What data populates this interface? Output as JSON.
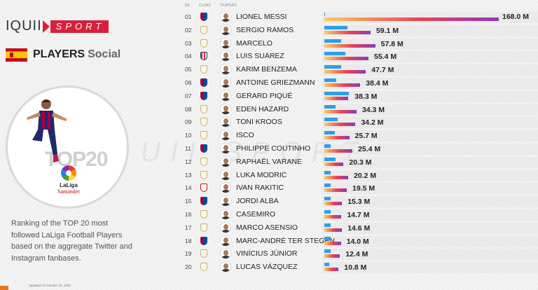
{
  "brand": {
    "left": "IQUII",
    "right": "SPORT"
  },
  "heading": {
    "main": "PLAYERS",
    "sub": "Social"
  },
  "badge": {
    "title": "TOP20",
    "league": "LaLiga",
    "sponsor": "Santander"
  },
  "description": "Ranking of the TOP 20 most followed LaLiga Football Players based on the aggregate Twitter and Instagram fanbases.",
  "footnote": "*Updated on October 20, 2020",
  "watermark": "IQUII SPORT",
  "colors": {
    "twitter": "#2aa0ea",
    "instagram_start": "#fccc63",
    "instagram_mid": "#e94057",
    "instagram_end": "#8a3ab9",
    "brand": "#d8203a"
  },
  "chart_data": {
    "type": "bar",
    "title": "PLAYERS Social",
    "columns": {
      "rank": "RK",
      "club": "CLUBS",
      "player": "PLAYERS"
    },
    "unit": "M",
    "xlim": [
      0,
      168
    ],
    "series_names": [
      "Twitter",
      "Instagram"
    ],
    "rows": [
      {
        "rank": "01",
        "club": "barcelona",
        "player": "LIONEL MESSI",
        "total": "168.0 M",
        "twitter": 0.5,
        "instagram": 168
      },
      {
        "rank": "02",
        "club": "real-madrid",
        "player": "SERGIO RAMOS",
        "total": "59.1 M",
        "twitter": 22,
        "instagram": 44.5
      },
      {
        "rank": "03",
        "club": "real-madrid",
        "player": "MARCELO",
        "total": "57.8 M",
        "twitter": 16,
        "instagram": 49
      },
      {
        "rank": "04",
        "club": "atletico",
        "player": "LUIS SUÁREZ",
        "total": "55.4 M",
        "twitter": 20,
        "instagram": 42.5
      },
      {
        "rank": "05",
        "club": "real-madrid",
        "player": "KARIM BENZEMA",
        "total": "47.7 M",
        "twitter": 16,
        "instagram": 40
      },
      {
        "rank": "06",
        "club": "barcelona",
        "player": "ANTOINE GRIEZMANN",
        "total": "38.4 M",
        "twitter": 11.7,
        "instagram": 34.6
      },
      {
        "rank": "07",
        "club": "barcelona",
        "player": "GERARD PIQUÉ",
        "total": "38.3 M",
        "twitter": 23.8,
        "instagram": 22.7
      },
      {
        "rank": "08",
        "club": "real-madrid",
        "player": "EDEN HAZARD",
        "total": "34.3 M",
        "twitter": 11,
        "instagram": 31
      },
      {
        "rank": "09",
        "club": "real-madrid",
        "player": "TONI KROOS",
        "total": "34.2 M",
        "twitter": 12.6,
        "instagram": 30
      },
      {
        "rank": "10",
        "club": "real-madrid",
        "player": "ISCO",
        "total": "25.7 M",
        "twitter": 10,
        "instagram": 24
      },
      {
        "rank": "11",
        "club": "barcelona",
        "player": "PHILIPPE COUTINHO",
        "total": "25.4 M",
        "twitter": 6,
        "instagram": 27
      },
      {
        "rank": "12",
        "club": "real-madrid",
        "player": "RAPHAËL VARANE",
        "total": "20.3 M",
        "twitter": 10.8,
        "instagram": 18.5
      },
      {
        "rank": "13",
        "club": "real-madrid",
        "player": "LUKA MODRIC",
        "total": "20.2 M",
        "twitter": 6,
        "instagram": 23
      },
      {
        "rank": "14",
        "club": "sevilla",
        "player": "IVAN RAKITIC",
        "total": "19.5 M",
        "twitter": 6.3,
        "instagram": 21.6
      },
      {
        "rank": "15",
        "club": "barcelona",
        "player": "JORDI ALBA",
        "total": "15.3 M",
        "twitter": 6,
        "instagram": 17
      },
      {
        "rank": "16",
        "club": "real-madrid",
        "player": "CASEMIRO",
        "total": "14.7 M",
        "twitter": 6,
        "instagram": 16.5
      },
      {
        "rank": "17",
        "club": "real-madrid",
        "player": "MARCO ASENSIO",
        "total": "14.6 M",
        "twitter": 6,
        "instagram": 17
      },
      {
        "rank": "18",
        "club": "barcelona",
        "player": "MARC-ANDRÉ TER STEGEN",
        "total": "14.0 M",
        "twitter": 6,
        "instagram": 16
      },
      {
        "rank": "19",
        "club": "real-madrid",
        "player": "VINÍCIUS JÚNIOR",
        "total": "12.4 M",
        "twitter": 6,
        "instagram": 15
      },
      {
        "rank": "20",
        "club": "real-madrid",
        "player": "LUCAS VÁZQUEZ",
        "total": "10.8 M",
        "twitter": 5,
        "instagram": 13.7
      }
    ]
  }
}
